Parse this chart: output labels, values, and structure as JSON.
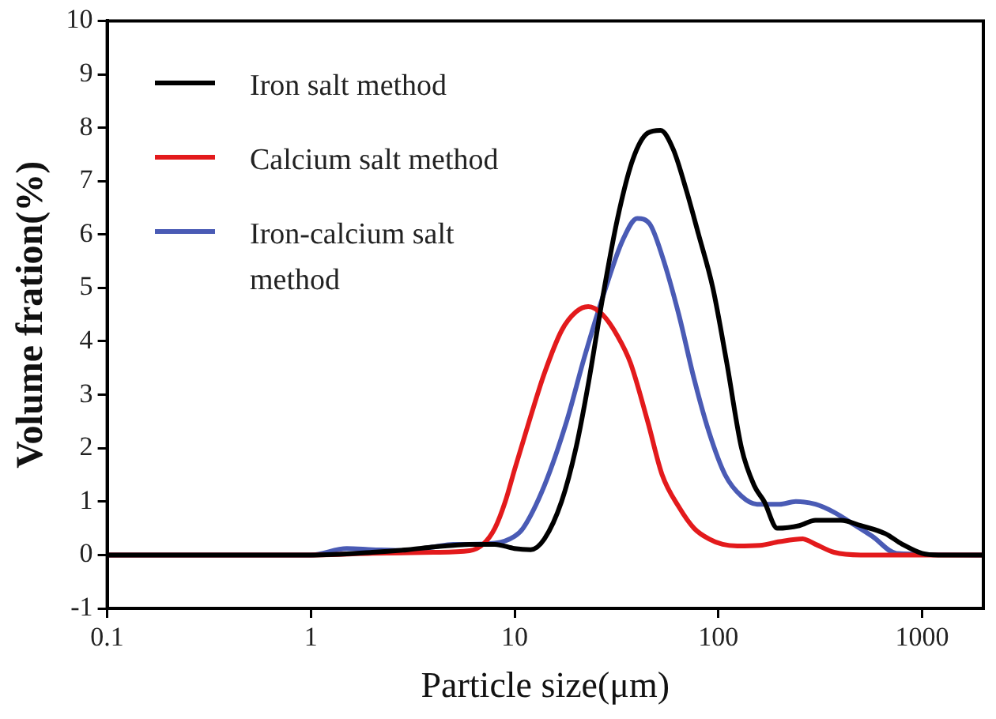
{
  "chart_data": {
    "type": "line",
    "xlabel": "Particle size(μm)",
    "ylabel": "Volume fration(%)",
    "log": "x",
    "xlim": [
      0.1,
      2000
    ],
    "xticks": [
      0.1,
      1,
      10,
      100,
      1000
    ],
    "ylim": [
      -1,
      10
    ],
    "yticks": [
      -1,
      0,
      1,
      2,
      3,
      4,
      5,
      6,
      7,
      8,
      9,
      10
    ],
    "grid": false,
    "legend": "top left",
    "marker": "none",
    "line_style": "solid",
    "series": [
      {
        "name": "Iron salt method",
        "color": "#000000",
        "x": [
          0.1,
          1,
          2,
          3,
          4,
          5,
          6,
          8,
          10,
          12,
          14,
          17,
          20,
          23,
          27,
          32,
          38,
          45,
          52,
          60,
          70,
          80,
          94,
          110,
          130,
          150,
          168,
          195,
          250,
          300,
          400,
          500,
          660,
          800,
          1000,
          1200,
          2000
        ],
        "values": [
          0,
          0,
          0.05,
          0.1,
          0.15,
          0.18,
          0.2,
          0.2,
          0.12,
          0.1,
          0.3,
          1.0,
          2.0,
          3.2,
          4.8,
          6.3,
          7.4,
          7.9,
          7.95,
          7.6,
          6.8,
          6.0,
          5.0,
          3.6,
          2.0,
          1.3,
          1.0,
          0.5,
          0.55,
          0.65,
          0.65,
          0.55,
          0.4,
          0.2,
          0.03,
          0,
          0
        ]
      },
      {
        "name": "Calcium salt method",
        "color": "#e31a1c",
        "x": [
          0.1,
          1,
          2,
          4,
          6,
          7,
          8,
          9,
          10,
          12,
          14,
          17,
          20,
          23,
          27,
          32,
          37,
          45,
          53,
          64,
          76,
          90,
          105,
          124,
          160,
          200,
          260,
          300,
          370,
          500,
          2000
        ],
        "values": [
          0,
          0,
          0.03,
          0.05,
          0.08,
          0.2,
          0.5,
          1.0,
          1.6,
          2.6,
          3.4,
          4.2,
          4.55,
          4.65,
          4.5,
          4.1,
          3.6,
          2.5,
          1.5,
          0.9,
          0.5,
          0.3,
          0.2,
          0.17,
          0.18,
          0.25,
          0.3,
          0.2,
          0.05,
          0,
          0
        ]
      },
      {
        "name": "Iron-calcium salt method",
        "color": "#4a5bb5",
        "x": [
          0.1,
          1,
          1.5,
          2,
          3,
          4,
          5,
          6,
          8,
          10,
          11,
          14,
          18,
          22,
          28,
          34,
          40,
          46,
          53,
          64,
          76,
          90,
          108,
          130,
          155,
          200,
          240,
          300,
          370,
          450,
          570,
          750,
          2000
        ],
        "values": [
          0,
          0,
          0.12,
          0.1,
          0.08,
          0.15,
          0.2,
          0.2,
          0.22,
          0.35,
          0.5,
          1.3,
          2.5,
          3.7,
          5.0,
          5.9,
          6.3,
          6.2,
          5.6,
          4.5,
          3.3,
          2.3,
          1.5,
          1.1,
          0.95,
          0.95,
          1.0,
          0.95,
          0.8,
          0.6,
          0.35,
          0.03,
          0
        ]
      }
    ]
  }
}
